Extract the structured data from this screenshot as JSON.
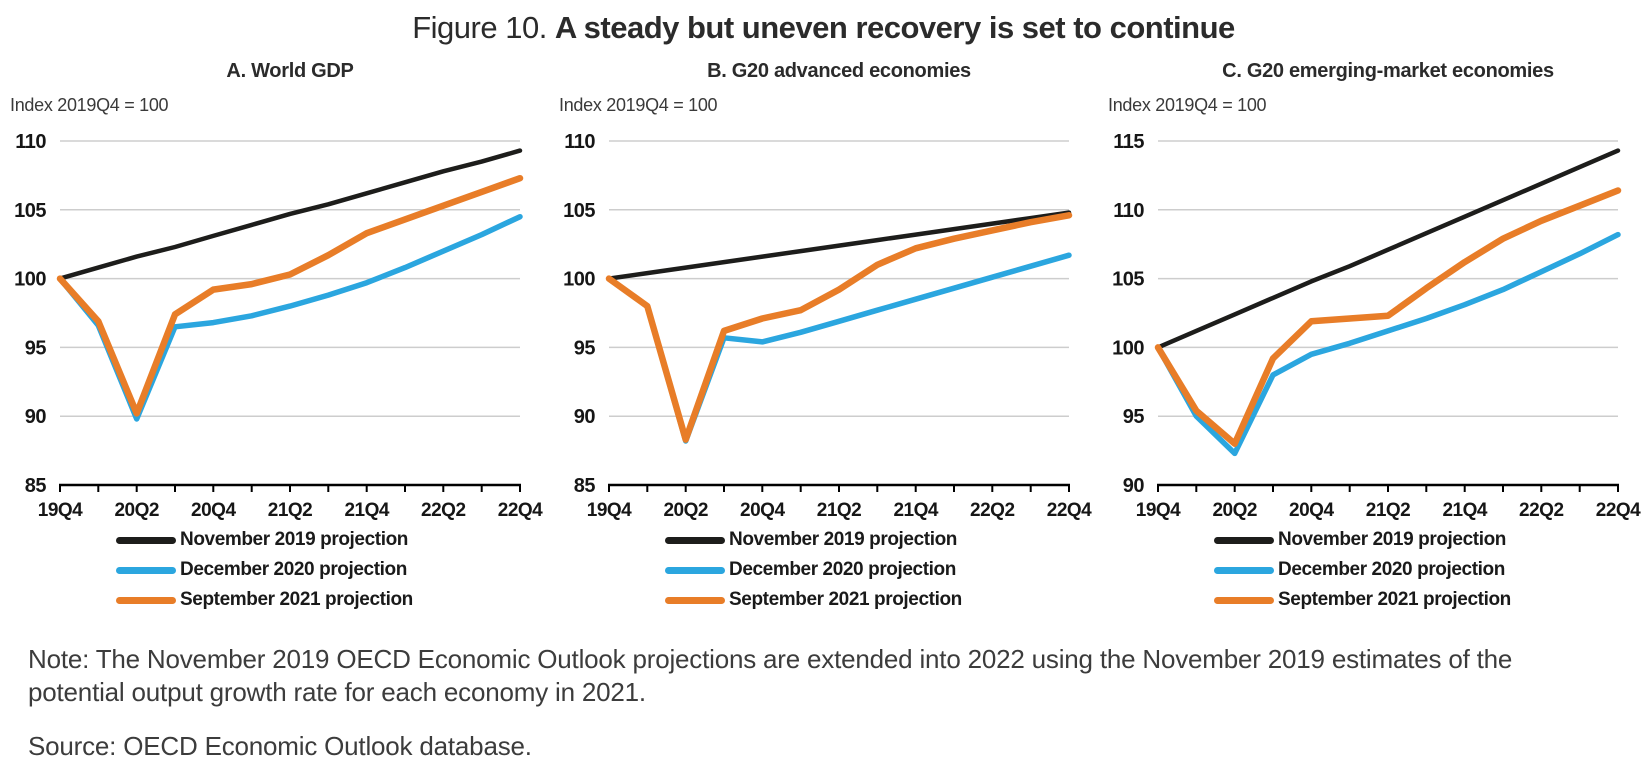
{
  "figure": {
    "label": "Figure 10.",
    "title": "A steady but uneven recovery is set to continue"
  },
  "note": "Note: The November 2019 OECD Economic Outlook projections are extended into 2022 using the November 2019 estimates of the potential output growth rate for each economy in 2021.",
  "source": "Source: OECD Economic Outlook database.",
  "colors": {
    "november_2019": "#1d1d1b",
    "december_2020": "#2ba6df",
    "september_2021": "#e87d28",
    "gridline": "#cdcdcd",
    "axis": "#000000",
    "text": "#1a1a1a"
  },
  "chart_data": [
    {
      "type": "line",
      "title": "A. World GDP",
      "axis_note": "Index 2019Q4 = 100",
      "categories": [
        "19Q4",
        "20Q1",
        "20Q2",
        "20Q3",
        "20Q4",
        "21Q1",
        "21Q2",
        "21Q3",
        "21Q4",
        "22Q1",
        "22Q2",
        "22Q3",
        "22Q4"
      ],
      "xtick_labels": [
        "19Q4",
        "20Q2",
        "20Q4",
        "21Q2",
        "21Q4",
        "22Q2",
        "22Q4"
      ],
      "ylim": [
        85,
        110
      ],
      "yticks": [
        85,
        90,
        95,
        100,
        105,
        110
      ],
      "grid": true,
      "legend_position": "bottom",
      "series": [
        {
          "name": "November 2019 projection",
          "color": "#1d1d1b",
          "values": [
            100,
            100.8,
            101.6,
            102.3,
            103.1,
            103.9,
            104.7,
            105.4,
            106.2,
            107.0,
            107.8,
            108.5,
            109.3
          ]
        },
        {
          "name": "December 2020 projection",
          "color": "#2ba6df",
          "values": [
            100,
            96.6,
            89.8,
            96.5,
            96.8,
            97.3,
            98.0,
            98.8,
            99.7,
            100.8,
            102.0,
            103.2,
            104.5
          ]
        },
        {
          "name": "September 2021 projection",
          "color": "#e87d28",
          "values": [
            100,
            96.9,
            90.2,
            97.4,
            99.2,
            99.6,
            100.3,
            101.7,
            103.3,
            104.3,
            105.3,
            106.3,
            107.3
          ]
        }
      ]
    },
    {
      "type": "line",
      "title": "B. G20 advanced economies",
      "axis_note": "Index 2019Q4 = 100",
      "categories": [
        "19Q4",
        "20Q1",
        "20Q2",
        "20Q3",
        "20Q4",
        "21Q1",
        "21Q2",
        "21Q3",
        "21Q4",
        "22Q1",
        "22Q2",
        "22Q3",
        "22Q4"
      ],
      "xtick_labels": [
        "19Q4",
        "20Q2",
        "20Q4",
        "21Q2",
        "21Q4",
        "22Q2",
        "22Q4"
      ],
      "ylim": [
        85,
        110
      ],
      "yticks": [
        85,
        90,
        95,
        100,
        105,
        110
      ],
      "grid": true,
      "legend_position": "bottom",
      "series": [
        {
          "name": "November 2019 projection",
          "color": "#1d1d1b",
          "values": [
            100,
            100.4,
            100.8,
            101.2,
            101.6,
            102.0,
            102.4,
            102.8,
            103.2,
            103.6,
            104.0,
            104.4,
            104.8
          ]
        },
        {
          "name": "December 2020 projection",
          "color": "#2ba6df",
          "values": [
            100,
            98.0,
            88.2,
            95.7,
            95.4,
            96.1,
            96.9,
            97.7,
            98.5,
            99.3,
            100.1,
            100.9,
            101.7
          ]
        },
        {
          "name": "September 2021 projection",
          "color": "#e87d28",
          "values": [
            100,
            98.0,
            88.3,
            96.2,
            97.1,
            97.7,
            99.2,
            101.0,
            102.2,
            102.9,
            103.5,
            104.1,
            104.6
          ]
        }
      ]
    },
    {
      "type": "line",
      "title": "C. G20 emerging-market economies",
      "axis_note": "Index 2019Q4 = 100",
      "categories": [
        "19Q4",
        "20Q1",
        "20Q2",
        "20Q3",
        "20Q4",
        "21Q1",
        "21Q2",
        "21Q3",
        "21Q4",
        "22Q1",
        "22Q2",
        "22Q3",
        "22Q4"
      ],
      "xtick_labels": [
        "19Q4",
        "20Q2",
        "20Q4",
        "21Q2",
        "21Q4",
        "22Q2",
        "22Q4"
      ],
      "ylim": [
        90,
        115
      ],
      "yticks": [
        90,
        95,
        100,
        105,
        110,
        115
      ],
      "grid": true,
      "legend_position": "bottom",
      "series": [
        {
          "name": "November 2019 projection",
          "color": "#1d1d1b",
          "values": [
            100,
            101.2,
            102.4,
            103.6,
            104.8,
            105.9,
            107.1,
            108.3,
            109.5,
            110.7,
            111.9,
            113.1,
            114.3
          ]
        },
        {
          "name": "December 2020 projection",
          "color": "#2ba6df",
          "values": [
            100,
            95.0,
            92.3,
            98.0,
            99.5,
            100.3,
            101.2,
            102.1,
            103.1,
            104.2,
            105.5,
            106.8,
            108.2
          ]
        },
        {
          "name": "September 2021 projection",
          "color": "#e87d28",
          "values": [
            100,
            95.4,
            93.0,
            99.2,
            101.9,
            102.1,
            102.3,
            104.3,
            106.2,
            107.9,
            109.2,
            110.3,
            111.4
          ]
        }
      ]
    }
  ]
}
